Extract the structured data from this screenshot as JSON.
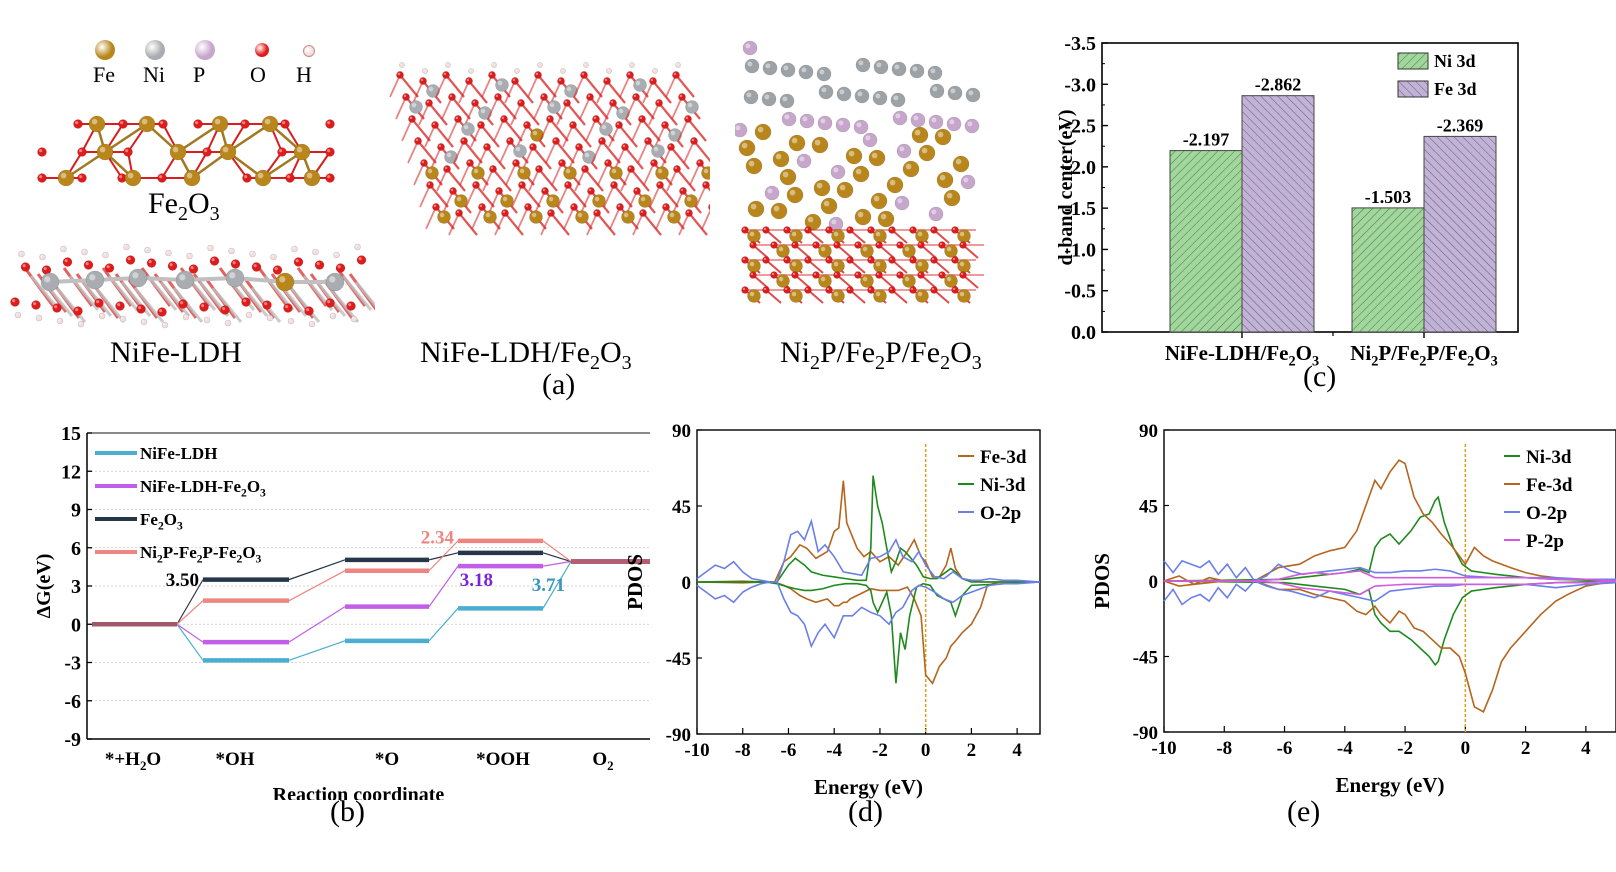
{
  "figure": {
    "panel_labels": {
      "a": "(a)",
      "b": "(b)",
      "c": "(c)",
      "d": "(d)",
      "e": "(e)"
    }
  },
  "panel_a": {
    "legend": [
      {
        "element": "Fe",
        "color": "#b8861b"
      },
      {
        "element": "Ni",
        "color": "#a9adb1"
      },
      {
        "element": "P",
        "color": "#c7a6cc"
      },
      {
        "element": "O",
        "color": "#e01b1b"
      },
      {
        "element": "H",
        "color": "#f2dede"
      }
    ],
    "structures": [
      {
        "id": "fe2o3",
        "label": "Fe",
        "sub1": "2",
        "mid": "O",
        "sub2": "3"
      },
      {
        "id": "nife-ldh",
        "label": "NiFe-LDH"
      },
      {
        "id": "nife-ldh-fe2o3",
        "label": "NiFe-LDH/Fe",
        "sub1": "2",
        "mid": "O",
        "sub2": "3"
      },
      {
        "id": "ni2p-fe2p-fe2o3",
        "parts": [
          "Ni",
          "2",
          "P/Fe",
          "2",
          "P/Fe",
          "2",
          "O",
          "3"
        ]
      }
    ]
  },
  "chart_data": [
    {
      "panel": "b",
      "type": "line",
      "title": "",
      "xlabel": "Reaction coordinate",
      "ylabel": "ΔG(eV)",
      "ylim": [
        -9,
        15
      ],
      "yticks": [
        15,
        12,
        9,
        6,
        3,
        0,
        -3,
        -6,
        -9
      ],
      "grid": "horizontal dotted",
      "categories": [
        "*+H2O",
        "*OH",
        "*O",
        "*OOH",
        "O2"
      ],
      "category_labels": [
        {
          "main": "*+H",
          "sub": "2",
          "tail": "O"
        },
        {
          "main": "*OH",
          "sub": "",
          "tail": ""
        },
        {
          "main": "*O",
          "sub": "",
          "tail": ""
        },
        {
          "main": "*OOH",
          "sub": "",
          "tail": ""
        },
        {
          "main": "O",
          "sub": "2",
          "tail": ""
        }
      ],
      "legend_position": "top-left",
      "series": [
        {
          "name": "NiFe-LDH",
          "legend": {
            "main": "NiFe-LDH"
          },
          "color": "#4baed0",
          "values": [
            0,
            -2.83,
            -1.3,
            1.25,
            4.92
          ]
        },
        {
          "name": "NiFe-LDH-Fe2O3",
          "legend": {
            "main": "NiFe-LDH-Fe",
            "sub1": "2",
            "mid": "O",
            "sub2": "3"
          },
          "color": "#c25ee8",
          "values": [
            0,
            -1.4,
            1.38,
            4.56,
            4.92
          ]
        },
        {
          "name": "Fe2O3",
          "legend": {
            "main": "Fe",
            "sub1": "2",
            "mid": "O",
            "sub2": "3"
          },
          "color": "#26374a",
          "values": [
            0,
            3.5,
            5.05,
            5.6,
            4.92
          ]
        },
        {
          "name": "Ni2P-Fe2P-Fe2O3",
          "legend": {
            "parts": [
              "Ni",
              "2",
              "P-Fe",
              "2",
              "P-Fe",
              "2",
              "O",
              "3"
            ]
          },
          "color": "#ee8580",
          "values": [
            0,
            1.85,
            4.2,
            6.54,
            4.92
          ]
        }
      ],
      "annotations": [
        {
          "text": "3.50",
          "color": "#000000",
          "near": "Fe2O3 step *+H2O→*OH"
        },
        {
          "text": "2.34",
          "color": "#ee8580",
          "near": "Ni2P-Fe2P-Fe2O3 step *O→*OOH"
        },
        {
          "text": "3.18",
          "color": "#7a22d6",
          "near": "NiFe-LDH-Fe2O3 step *O→*OOH"
        },
        {
          "text": "3.71",
          "color": "#3a96bf",
          "near": "NiFe-LDH step *OOH→O2"
        }
      ]
    },
    {
      "panel": "c",
      "type": "bar",
      "title": "",
      "xlabel": "",
      "ylabel": "d-band center(eV)",
      "ylim": [
        0,
        -3.5
      ],
      "yticks": [
        "0.0",
        "-0.5",
        "-1.0",
        "-1.5",
        "-2.0",
        "-2.5",
        "-3.0",
        "-3.5"
      ],
      "categories": [
        "NiFe-LDH/Fe2O3",
        "Ni2P/Fe2P/Fe2O3"
      ],
      "category_labels": [
        {
          "parts": [
            "NiFe-LDH/Fe",
            "2",
            "O",
            "3"
          ]
        },
        {
          "parts": [
            "Ni",
            "2",
            "P/Fe",
            "2",
            "P/Fe",
            "2",
            "O",
            "3"
          ]
        }
      ],
      "legend_position": "top-right",
      "series": [
        {
          "name": "Ni 3d",
          "color": "#9fd89a",
          "hatch": "forward-diagonal",
          "values": [
            -2.197,
            -1.503
          ],
          "labels": [
            "-2.197",
            "-1.503"
          ]
        },
        {
          "name": "Fe 3d",
          "color": "#c2b2d8",
          "hatch": "back-diagonal",
          "values": [
            -2.862,
            -2.369
          ],
          "labels": [
            "-2.862",
            "-2.369"
          ]
        }
      ]
    },
    {
      "panel": "d",
      "type": "line",
      "title": "",
      "xlabel": "Energy (eV)",
      "ylabel": "PDOS",
      "xlim": [
        -10,
        5
      ],
      "ylim": [
        -90,
        90
      ],
      "xticks": [
        "-10",
        "-8",
        "-6",
        "-4",
        "-2",
        "0",
        "2",
        "4"
      ],
      "yticks": [
        "90",
        "45",
        "0",
        "-45",
        "-90"
      ],
      "fermi_level": 0,
      "legend_position": "top-right",
      "series": [
        {
          "name": "Fe-3d",
          "color": "#b5651d",
          "x": [
            -10,
            -8,
            -7,
            -6.6,
            -6.2,
            -5.9,
            -5.5,
            -5.2,
            -4.8,
            -4.3,
            -4.0,
            -3.8,
            -3.6,
            -3.45,
            -3.3,
            -3.0,
            -2.7,
            -2.4,
            -2.0,
            -1.6,
            -1.2,
            -0.8,
            -0.5,
            -0.2,
            0,
            0.3,
            0.6,
            0.9,
            1.1,
            1.3,
            1.6,
            2.0,
            2.4,
            2.7,
            3.2,
            5
          ],
          "up": [
            0,
            0.5,
            0,
            0,
            12,
            15,
            22,
            20,
            14,
            18,
            30,
            32,
            60,
            35,
            30,
            20,
            15,
            18,
            12,
            15,
            10,
            18,
            25,
            15,
            12,
            3,
            3,
            10,
            20,
            8,
            2,
            1,
            0,
            0,
            0,
            0
          ],
          "down": [
            0,
            -0.5,
            0,
            0,
            -2,
            -4,
            -8,
            -10,
            -12,
            -10,
            -14,
            -14,
            -12,
            -12,
            -10,
            -8,
            -6,
            -4,
            -5,
            -5,
            -5,
            -3,
            -10,
            -20,
            -55,
            -60,
            -50,
            -45,
            -38,
            -35,
            -30,
            -25,
            -15,
            -2,
            0,
            0
          ]
        },
        {
          "name": "Ni-3d",
          "color": "#1e8a1e",
          "x": [
            -10,
            -7,
            -6.5,
            -6.0,
            -5.7,
            -5.3,
            -5.0,
            -4.5,
            -4.0,
            -3.5,
            -3.0,
            -2.6,
            -2.4,
            -2.3,
            -2.1,
            -1.9,
            -1.7,
            -1.5,
            -1.3,
            -1.1,
            -0.9,
            -0.7,
            -0.4,
            -0.1,
            0.2,
            0.5,
            0.8,
            1.1,
            1.3,
            1.6,
            2.0,
            5
          ],
          "up": [
            0,
            0,
            0,
            10,
            14,
            10,
            6,
            4,
            3,
            2,
            1,
            1,
            20,
            63,
            45,
            35,
            20,
            6,
            12,
            20,
            18,
            15,
            10,
            3,
            2,
            2,
            5,
            8,
            6,
            2,
            0,
            0
          ],
          "down": [
            0,
            0,
            -1,
            -3,
            -4,
            -5,
            -5,
            -4,
            -2,
            -1,
            -1,
            -2,
            -5,
            -12,
            -18,
            -12,
            -6,
            -20,
            -60,
            -30,
            -40,
            -20,
            -3,
            -1,
            -2,
            -8,
            -10,
            -12,
            -20,
            -8,
            -2,
            0
          ]
        },
        {
          "name": "O-2p",
          "color": "#6a7fe8",
          "x": [
            -10,
            -9.6,
            -9.2,
            -8.8,
            -8.4,
            -8.0,
            -7.6,
            -7.2,
            -6.8,
            -6.5,
            -6.2,
            -5.9,
            -5.6,
            -5.3,
            -5.0,
            -4.7,
            -4.4,
            -4.0,
            -3.6,
            -3.2,
            -2.8,
            -2.4,
            -2.0,
            -1.6,
            -1.3,
            -1.0,
            -0.6,
            -0.3,
            0,
            0.4,
            0.8,
            1.2,
            1.6,
            2.0,
            2.4,
            2.8,
            3.4,
            4.0,
            5
          ],
          "up": [
            2,
            6,
            10,
            8,
            12,
            6,
            2,
            1,
            0,
            0,
            12,
            28,
            30,
            25,
            36,
            18,
            22,
            15,
            6,
            5,
            4,
            14,
            15,
            18,
            25,
            15,
            12,
            18,
            10,
            3,
            2,
            6,
            2,
            1,
            1,
            2,
            1,
            1,
            0
          ],
          "down": [
            -2,
            -6,
            -10,
            -8,
            -12,
            -6,
            -3,
            -1,
            0,
            0,
            -10,
            -18,
            -20,
            -25,
            -38,
            -30,
            -25,
            -33,
            -20,
            -20,
            -15,
            -18,
            -20,
            -25,
            -18,
            -15,
            -5,
            -2,
            -3,
            -6,
            -10,
            -12,
            -8,
            -6,
            -4,
            -2,
            -1,
            -1,
            0
          ]
        }
      ]
    },
    {
      "panel": "e",
      "type": "line",
      "title": "",
      "xlabel": "Energy (eV)",
      "ylabel": "PDOS",
      "xlim": [
        -10,
        5
      ],
      "ylim": [
        -90,
        90
      ],
      "xticks": [
        "-10",
        "-8",
        "-6",
        "-4",
        "-2",
        "0",
        "2",
        "4"
      ],
      "yticks": [
        "90",
        "45",
        "0",
        "-45",
        "-90"
      ],
      "fermi_level": 0,
      "legend_position": "top-right",
      "series": [
        {
          "name": "Ni-3d",
          "color": "#1e8a1e",
          "x": [
            -10,
            -6,
            -5,
            -4,
            -3.5,
            -3.2,
            -3.0,
            -2.8,
            -2.5,
            -2.2,
            -1.8,
            -1.5,
            -1.2,
            -1.0,
            -0.9,
            -0.7,
            -0.4,
            -0.1,
            0.2,
            0.6,
            1.0,
            1.5,
            2.0,
            3.0,
            5
          ],
          "up": [
            0,
            1,
            3,
            5,
            7,
            5,
            20,
            25,
            28,
            22,
            30,
            38,
            40,
            48,
            50,
            35,
            20,
            10,
            6,
            5,
            4,
            3,
            2,
            1,
            0
          ],
          "down": [
            0,
            -1,
            -3,
            -5,
            -8,
            -5,
            -20,
            -25,
            -30,
            -30,
            -35,
            -40,
            -45,
            -50,
            -48,
            -35,
            -20,
            -10,
            -6,
            -5,
            -4,
            -3,
            -2,
            -1,
            0
          ]
        },
        {
          "name": "Fe-3d",
          "color": "#b5651d",
          "x": [
            -10,
            -9.5,
            -9,
            -8.5,
            -8,
            -7,
            -6.2,
            -5.5,
            -5,
            -4.5,
            -4,
            -3.6,
            -3.3,
            -3.0,
            -2.8,
            -2.5,
            -2.2,
            -2.0,
            -1.7,
            -1.4,
            -1.1,
            -0.8,
            -0.5,
            -0.2,
            0,
            0.3,
            0.6,
            0.9,
            1.2,
            1.5,
            2.0,
            2.5,
            3.0,
            3.4,
            4.0,
            5
          ],
          "up": [
            0,
            3,
            -2,
            2,
            0,
            0,
            8,
            10,
            15,
            18,
            20,
            30,
            45,
            60,
            55,
            65,
            72,
            70,
            50,
            40,
            35,
            28,
            22,
            15,
            10,
            20,
            15,
            12,
            10,
            8,
            5,
            3,
            2,
            1,
            1,
            0
          ],
          "down": [
            0,
            -3,
            -2,
            -1,
            0,
            0,
            -5,
            -5,
            -8,
            -10,
            -12,
            -18,
            -20,
            -15,
            -20,
            -25,
            -18,
            -20,
            -28,
            -30,
            -35,
            -40,
            -40,
            -45,
            -55,
            -75,
            -78,
            -65,
            -48,
            -40,
            -30,
            -20,
            -12,
            -8,
            -3,
            0
          ]
        },
        {
          "name": "O-2p",
          "color": "#6a7fe8",
          "x": [
            -10,
            -9.7,
            -9.4,
            -9.1,
            -8.8,
            -8.5,
            -8.2,
            -7.9,
            -7.6,
            -7.3,
            -7.0,
            -6.6,
            -6.2,
            -5.8,
            -5.4,
            -5.0,
            -4.5,
            -4.0,
            -3.5,
            -3.0,
            -2.5,
            -2.0,
            -1.5,
            -1.0,
            -0.5,
            0,
            1,
            2,
            3,
            4,
            5
          ],
          "up": [
            12,
            5,
            12,
            10,
            8,
            12,
            4,
            10,
            2,
            8,
            0,
            3,
            10,
            6,
            4,
            5,
            6,
            7,
            8,
            5,
            5,
            6,
            6,
            7,
            6,
            3,
            2,
            2,
            2,
            1,
            1
          ],
          "down": [
            -12,
            -5,
            -14,
            -10,
            -8,
            -12,
            -4,
            -10,
            -2,
            -6,
            0,
            -3,
            -5,
            -6,
            -8,
            -10,
            -6,
            -8,
            -10,
            -12,
            -6,
            -5,
            -4,
            -3,
            -3,
            -2,
            -2,
            -2,
            -4,
            -2,
            -1
          ]
        },
        {
          "name": "P-2p",
          "color": "#d45be0",
          "x": [
            -10,
            -7,
            -6.2,
            -5.5,
            -5,
            -4.5,
            -4,
            -3.5,
            -3.0,
            -2.0,
            -1.0,
            0,
            1,
            2,
            3,
            4,
            5
          ],
          "up": [
            0,
            0,
            1,
            4,
            5,
            4,
            5,
            6,
            2,
            2,
            2,
            2,
            2,
            2,
            1,
            1,
            0
          ],
          "down": [
            0,
            0,
            -1,
            -4,
            -5,
            -6,
            -7,
            -8,
            -3,
            -2,
            -2,
            -2,
            -2,
            -2,
            -1,
            -1,
            0
          ]
        }
      ]
    }
  ]
}
